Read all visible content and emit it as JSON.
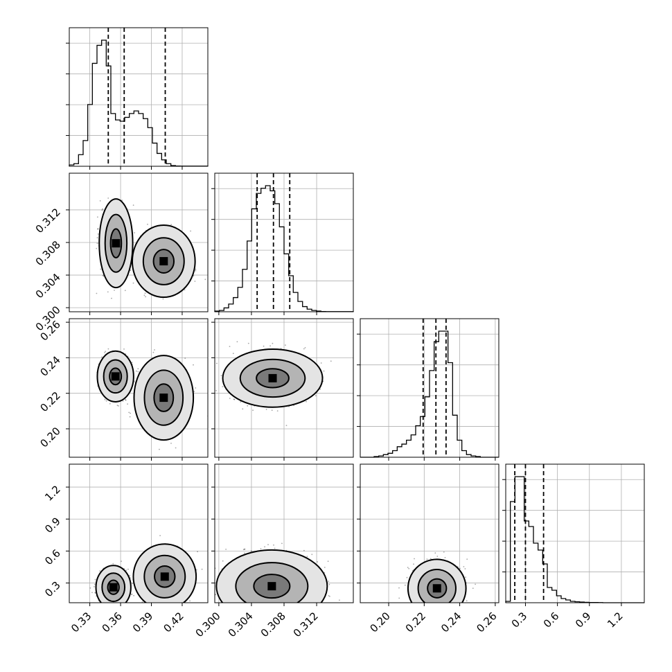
{
  "colors": {
    "ink": "#000000",
    "grid": "#b0b0b0",
    "background": "#ffffff"
  },
  "chart_data": {
    "type": "corner",
    "title": "",
    "parameters": [
      {
        "id": "p0",
        "label": "",
        "range": [
          0.31,
          0.445
        ],
        "ticks": [
          0.33,
          0.36,
          0.39,
          0.42
        ],
        "tick_labels": [
          "0.33",
          "0.36",
          "0.39",
          "0.42"
        ]
      },
      {
        "id": "p1",
        "label": "",
        "range": [
          0.2995,
          0.3165
        ],
        "ticks": [
          0.3,
          0.304,
          0.308,
          0.312
        ],
        "tick_labels": [
          "0.300",
          "0.304",
          "0.308",
          "0.312"
        ]
      },
      {
        "id": "p2",
        "label": "",
        "range": [
          0.184,
          0.262
        ],
        "ticks": [
          0.2,
          0.22,
          0.24,
          0.26
        ],
        "tick_labels": [
          "0.20",
          "0.22",
          "0.24",
          "0.26"
        ]
      },
      {
        "id": "p3",
        "label": "",
        "range": [
          0.115,
          1.415
        ],
        "ticks": [
          0.3,
          0.6,
          0.9,
          1.2
        ],
        "tick_labels": [
          "0.3",
          "0.6",
          "0.9",
          "1.2"
        ]
      }
    ],
    "histograms": [
      {
        "param": 0,
        "edges": [
          0.31,
          0.3145,
          0.319,
          0.3235,
          0.328,
          0.3325,
          0.337,
          0.3415,
          0.346,
          0.3505,
          0.355,
          0.3595,
          0.364,
          0.3685,
          0.373,
          0.3775,
          0.382,
          0.3865,
          0.391,
          0.3955,
          0.4,
          0.4045,
          0.409,
          0.4135,
          0.418,
          0.4225,
          0.427,
          0.4315,
          0.436,
          0.4405,
          0.445
        ],
        "counts": [
          0.01,
          0.02,
          0.09,
          0.2,
          0.48,
          0.8,
          0.94,
          0.98,
          0.78,
          0.41,
          0.36,
          0.35,
          0.38,
          0.41,
          0.43,
          0.41,
          0.37,
          0.3,
          0.18,
          0.1,
          0.05,
          0.02,
          0.005,
          0.002,
          0.001,
          0.001,
          0.001,
          0.001,
          0.001,
          0.001
        ],
        "quantiles": [
          0.348,
          0.3635,
          0.4035
        ]
      },
      {
        "param": 1,
        "edges": [
          0.2995,
          0.30007,
          0.30063,
          0.3012,
          0.30177,
          0.30233,
          0.3029,
          0.30347,
          0.30403,
          0.3046,
          0.30517,
          0.30573,
          0.3063,
          0.30687,
          0.30743,
          0.308,
          0.30857,
          0.30913,
          0.3097,
          0.31027,
          0.31083,
          0.3114,
          0.31197,
          0.31253,
          0.3131,
          0.31367,
          0.31423,
          0.3148,
          0.31537,
          0.31593,
          0.3165
        ],
        "counts": [
          0.005,
          0.01,
          0.03,
          0.06,
          0.11,
          0.19,
          0.33,
          0.55,
          0.8,
          0.92,
          0.96,
          0.98,
          0.94,
          0.84,
          0.66,
          0.45,
          0.28,
          0.15,
          0.08,
          0.04,
          0.02,
          0.01,
          0.005,
          0.002,
          0.001,
          0.001,
          0.001,
          0.001,
          0.001,
          0.001
        ],
        "quantiles": [
          0.3047,
          0.3067,
          0.3087
        ]
      },
      {
        "param": 2,
        "edges": [
          0.184,
          0.1866,
          0.1892,
          0.1918,
          0.1944,
          0.197,
          0.1996,
          0.2022,
          0.2048,
          0.2074,
          0.21,
          0.2126,
          0.2152,
          0.2178,
          0.2204,
          0.223,
          0.2256,
          0.2282,
          0.2308,
          0.2334,
          0.236,
          0.2386,
          0.2412,
          0.2438,
          0.2464,
          0.249,
          0.2516,
          0.2542,
          0.2568,
          0.2594,
          0.262
        ],
        "counts": [
          0,
          0,
          0,
          0.005,
          0.01,
          0.02,
          0.03,
          0.05,
          0.08,
          0.1,
          0.13,
          0.17,
          0.24,
          0.31,
          0.46,
          0.66,
          0.88,
          0.96,
          0.96,
          0.72,
          0.32,
          0.13,
          0.05,
          0.02,
          0.01,
          0.005,
          0,
          0,
          0,
          0
        ],
        "quantiles": [
          0.2194,
          0.2266,
          0.2323
        ]
      },
      {
        "param": 3,
        "edges": [
          0.115,
          0.1583,
          0.2017,
          0.245,
          0.2883,
          0.3317,
          0.375,
          0.4183,
          0.4617,
          0.505,
          0.5483,
          0.5917,
          0.635,
          0.6783,
          0.7217,
          0.765,
          0.8083,
          0.8517,
          0.895,
          0.9383,
          0.9817,
          1.025,
          1.0683,
          1.1117,
          1.155,
          1.1983,
          1.2417,
          1.285,
          1.3283,
          1.3717,
          1.415
        ],
        "counts": [
          0.01,
          0.73,
          0.91,
          0.91,
          0.59,
          0.55,
          0.43,
          0.38,
          0.28,
          0.11,
          0.09,
          0.05,
          0.03,
          0.02,
          0.01,
          0.007,
          0.005,
          0.003,
          0.002,
          0.002,
          0.001,
          0,
          0,
          0,
          0,
          0,
          0,
          0,
          0,
          0
        ],
        "quantiles": [
          0.2,
          0.3,
          0.47
        ]
      }
    ],
    "pairs": [
      {
        "x": 0,
        "y": 1,
        "modes": [
          {
            "cx": 0.3555,
            "cy": 0.3079,
            "sx": 0.0048,
            "sy": 0.0016,
            "w": 1.0
          },
          {
            "cx": 0.402,
            "cy": 0.3057,
            "sx": 0.009,
            "sy": 0.0013,
            "w": 0.6
          }
        ]
      },
      {
        "x": 0,
        "y": 2,
        "modes": [
          {
            "cx": 0.355,
            "cy": 0.2295,
            "sx": 0.0052,
            "sy": 0.0042,
            "w": 1.0
          },
          {
            "cx": 0.402,
            "cy": 0.2175,
            "sx": 0.0085,
            "sy": 0.007,
            "w": 0.6
          }
        ]
      },
      {
        "x": 0,
        "y": 3,
        "modes": [
          {
            "cx": 0.353,
            "cy": 0.26,
            "sx": 0.005,
            "sy": 0.06,
            "w": 1.0
          },
          {
            "cx": 0.403,
            "cy": 0.36,
            "sx": 0.009,
            "sy": 0.09,
            "w": 0.5
          }
        ]
      },
      {
        "x": 1,
        "y": 2,
        "modes": [
          {
            "cx": 0.3066,
            "cy": 0.2285,
            "sx": 0.0018,
            "sy": 0.0048,
            "w": 1.0
          }
        ]
      },
      {
        "x": 1,
        "y": 3,
        "modes": [
          {
            "cx": 0.3065,
            "cy": 0.27,
            "sx": 0.002,
            "sy": 0.1,
            "w": 1.0
          }
        ]
      },
      {
        "x": 2,
        "y": 3,
        "modes": [
          {
            "cx": 0.2272,
            "cy": 0.25,
            "sx": 0.0048,
            "sy": 0.08,
            "w": 1.0
          }
        ]
      }
    ],
    "grid": true,
    "legend": "none"
  }
}
